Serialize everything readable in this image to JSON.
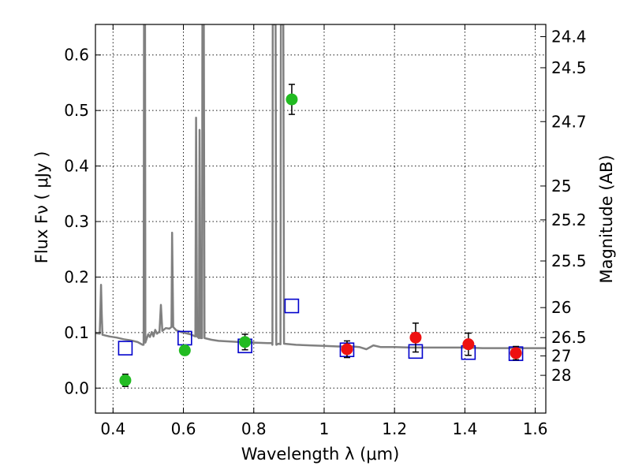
{
  "chart_data": {
    "type": "scatter",
    "xlabel": "Wavelength  λ (μm)",
    "ylabel": "Flux  Fν  ( μJy )",
    "y2label": "Magnitude (AB)",
    "xlim": [
      0.35,
      1.63
    ],
    "ylim": [
      -0.045,
      0.655
    ],
    "grid": true,
    "x_ticks": [
      0.4,
      0.6,
      0.8,
      1.0,
      1.2,
      1.4,
      1.6
    ],
    "x_tick_labels": [
      "0.4",
      "0.6",
      "0.8",
      "1",
      "1.2",
      "1.4",
      "1.6"
    ],
    "y_ticks": [
      0.0,
      0.1,
      0.2,
      0.3,
      0.4,
      0.5,
      0.6
    ],
    "y_tick_labels": [
      "0.0",
      "0.1",
      "0.2",
      "0.3",
      "0.4",
      "0.5",
      "0.6"
    ],
    "y2_ticks": [
      {
        "label": "24.4",
        "flux": 0.633
      },
      {
        "label": "24.5",
        "flux": 0.577
      },
      {
        "label": "24.7",
        "flux": 0.48
      },
      {
        "label": "25",
        "flux": 0.364
      },
      {
        "label": "25.2",
        "flux": 0.303
      },
      {
        "label": "25.5",
        "flux": 0.229
      },
      {
        "label": "26",
        "flux": 0.145
      },
      {
        "label": "26.5",
        "flux": 0.091
      },
      {
        "label": "27",
        "flux": 0.058
      },
      {
        "label": "28",
        "flux": 0.023
      }
    ],
    "series": [
      {
        "kind": "model_sed",
        "color": "#808080",
        "points": [
          [
            0.35,
            0.099
          ],
          [
            0.362,
            0.098
          ],
          [
            0.364,
            0.133
          ],
          [
            0.366,
            0.186
          ],
          [
            0.368,
            0.133
          ],
          [
            0.37,
            0.096
          ],
          [
            0.39,
            0.093
          ],
          [
            0.41,
            0.091
          ],
          [
            0.43,
            0.088
          ],
          [
            0.45,
            0.086
          ],
          [
            0.47,
            0.083
          ],
          [
            0.484,
            0.078
          ],
          [
            0.487,
            0.078
          ],
          [
            0.488,
            0.655
          ],
          [
            0.491,
            0.655
          ],
          [
            0.492,
            0.082
          ],
          [
            0.5,
            0.097
          ],
          [
            0.505,
            0.092
          ],
          [
            0.51,
            0.101
          ],
          [
            0.515,
            0.093
          ],
          [
            0.52,
            0.105
          ],
          [
            0.525,
            0.098
          ],
          [
            0.532,
            0.102
          ],
          [
            0.536,
            0.15
          ],
          [
            0.54,
            0.103
          ],
          [
            0.55,
            0.108
          ],
          [
            0.56,
            0.107
          ],
          [
            0.566,
            0.11
          ],
          [
            0.568,
            0.28
          ],
          [
            0.571,
            0.11
          ],
          [
            0.58,
            0.104
          ],
          [
            0.6,
            0.1
          ],
          [
            0.62,
            0.097
          ],
          [
            0.634,
            0.093
          ],
          [
            0.636,
            0.487
          ],
          [
            0.639,
            0.093
          ],
          [
            0.644,
            0.09
          ],
          [
            0.646,
            0.465
          ],
          [
            0.649,
            0.09
          ],
          [
            0.653,
            0.09
          ],
          [
            0.654,
            0.655
          ],
          [
            0.658,
            0.655
          ],
          [
            0.66,
            0.09
          ],
          [
            0.68,
            0.087
          ],
          [
            0.7,
            0.085
          ],
          [
            0.73,
            0.084
          ],
          [
            0.76,
            0.083
          ],
          [
            0.8,
            0.082
          ],
          [
            0.84,
            0.081
          ],
          [
            0.852,
            0.081
          ],
          [
            0.853,
            0.078
          ],
          [
            0.854,
            0.655
          ],
          [
            0.862,
            0.655
          ],
          [
            0.864,
            0.078
          ],
          [
            0.87,
            0.08
          ],
          [
            0.876,
            0.079
          ],
          [
            0.877,
            0.655
          ],
          [
            0.884,
            0.655
          ],
          [
            0.886,
            0.08
          ],
          [
            0.92,
            0.078
          ],
          [
            0.96,
            0.077
          ],
          [
            1.0,
            0.076
          ],
          [
            1.04,
            0.075
          ],
          [
            1.08,
            0.075
          ],
          [
            1.1,
            0.074
          ],
          [
            1.12,
            0.07
          ],
          [
            1.14,
            0.077
          ],
          [
            1.16,
            0.074
          ],
          [
            1.2,
            0.074
          ],
          [
            1.25,
            0.073
          ],
          [
            1.3,
            0.073
          ],
          [
            1.35,
            0.073
          ],
          [
            1.4,
            0.073
          ],
          [
            1.45,
            0.072
          ],
          [
            1.5,
            0.072
          ],
          [
            1.55,
            0.072
          ],
          [
            1.63,
            0.072
          ]
        ]
      },
      {
        "kind": "model_photometry",
        "color": "#0000cc",
        "x": [
          0.435,
          0.604,
          0.775,
          0.908,
          1.065,
          1.26,
          1.41,
          1.545
        ],
        "y": [
          0.072,
          0.09,
          0.076,
          0.148,
          0.069,
          0.066,
          0.064,
          0.062
        ]
      },
      {
        "kind": "observed_optical",
        "color": "#22bb22",
        "x": [
          0.435,
          0.604,
          0.775,
          0.908
        ],
        "y": [
          0.014,
          0.068,
          0.083,
          0.52
        ],
        "err": [
          0.011,
          0.007,
          0.014,
          0.027
        ]
      },
      {
        "kind": "observed_nir",
        "color": "#ee1111",
        "x": [
          1.065,
          1.26,
          1.41,
          1.545
        ],
        "y": [
          0.07,
          0.091,
          0.079,
          0.063
        ],
        "err": [
          0.015,
          0.026,
          0.02,
          0.012
        ]
      }
    ]
  }
}
